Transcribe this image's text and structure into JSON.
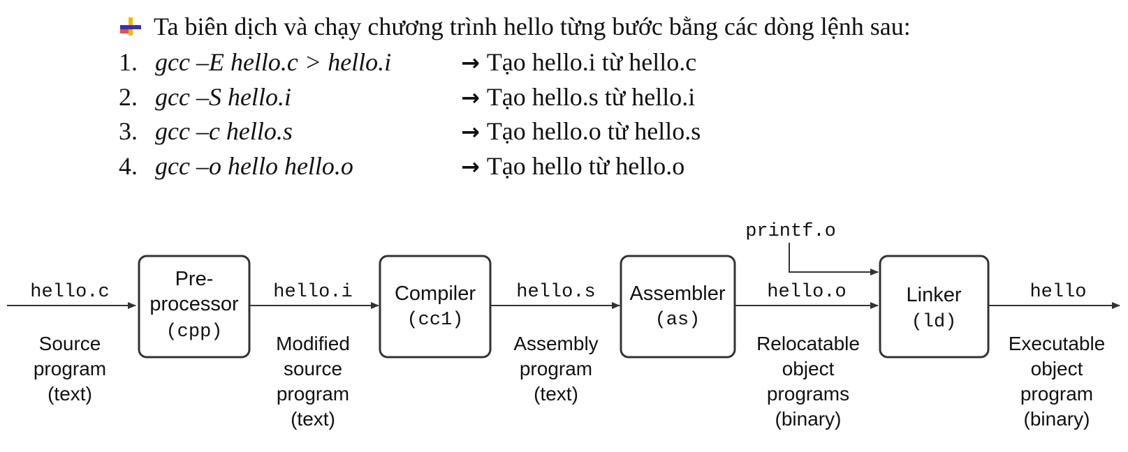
{
  "intro": {
    "text": "Ta biên dịch và chạy chương trình hello từng bước bằng các dòng lệnh sau:"
  },
  "steps": [
    {
      "num": "1.",
      "command": "gcc –E hello.c > hello.i",
      "result": "Tạo hello.i từ hello.c"
    },
    {
      "num": "2.",
      "command": "gcc –S hello.i",
      "result": "Tạo hello.s từ hello.i"
    },
    {
      "num": "3.",
      "command": "gcc –c hello.s",
      "result": "Tạo hello.o từ hello.s"
    },
    {
      "num": "4.",
      "command": "gcc –o hello hello.o",
      "result": "Tạo hello từ hello.o"
    }
  ],
  "arrow_glyph": "→",
  "diagram": {
    "files": {
      "source": "hello.c",
      "preprocessed": "hello.i",
      "assembly": "hello.s",
      "object": "hello.o",
      "library": "printf.o",
      "executable": "hello"
    },
    "stages": [
      {
        "line1": "Pre-",
        "line2": "processor",
        "tool": "(cpp)"
      },
      {
        "line1": "Compiler",
        "tool": "(cc1)"
      },
      {
        "line1": "Assembler",
        "tool": "(as)"
      },
      {
        "line1": "Linker",
        "tool": "(ld)"
      }
    ],
    "descriptions": {
      "source": [
        "Source",
        "program",
        "(text)"
      ],
      "modified": [
        "Modified",
        "source",
        "program",
        "(text)"
      ],
      "assembly": [
        "Assembly",
        "program",
        "(text)"
      ],
      "relocatable": [
        "Relocatable",
        "object",
        "programs",
        "(binary)"
      ],
      "executable": [
        "Executable",
        "object",
        "program",
        "(binary)"
      ]
    }
  },
  "colors": {
    "text": "#111111",
    "line": "#333333",
    "box_fill": "#ffffff"
  }
}
